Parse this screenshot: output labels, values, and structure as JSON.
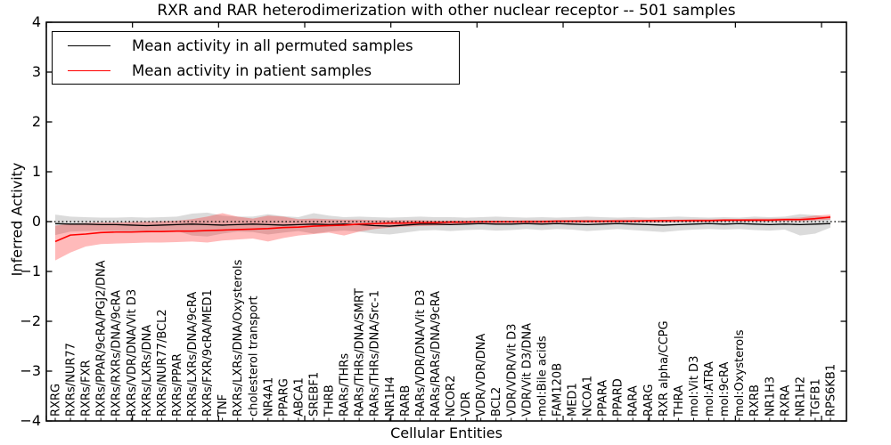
{
  "figure": {
    "title": "RXR and RAR heterodimerization with other nuclear receptor -- 501 samples",
    "xlabel": "Cellular Entities",
    "ylabel": "Inferred Activity",
    "legend": [
      {
        "label": "Mean activity in all permuted samples",
        "color": "#000000"
      },
      {
        "label": "Mean activity in patient samples",
        "color": "#ff0000"
      }
    ]
  },
  "chart_data": {
    "type": "line",
    "title": "RXR and RAR heterodimerization with other nuclear receptor -- 501 samples",
    "xlabel": "Cellular Entities",
    "ylabel": "Inferred Activity",
    "ylim": [
      -4,
      4
    ],
    "yticks": [
      -4,
      -3,
      -2,
      -1,
      0,
      1,
      2,
      3,
      4
    ],
    "ytick_labels": [
      "−4",
      "−3",
      "−2",
      "−1",
      "0",
      "1",
      "2",
      "3",
      "4"
    ],
    "grid": false,
    "legend_position": "upper left",
    "zero_line": {
      "value": 0,
      "style": "dotted",
      "color": "#000000"
    },
    "categories": [
      "RXRG",
      "RXRs/NUR77",
      "RXRs/FXR",
      "RXRs/PPAR/9cRA/PGJ2/DNA",
      "RXRs/RXRs/DNA/9cRA",
      "RXRs/VDR/DNA/Vit D3",
      "RXRs/LXRs/DNA",
      "RXRs/NUR77/BCL2",
      "RXRs/PPAR",
      "RXRs/LXRs/DNA/9cRA",
      "RXRs/FXR/9cRA/MED1",
      "TNF",
      "RXRs/LXRs/DNA/Oxysterols",
      "cholesterol transport",
      "NR4A1",
      "PPARG",
      "ABCA1",
      "SREBF1",
      "THRB",
      "RARs/THRs",
      "RARs/THRs/DNA/SMRT",
      "RARs/THRs/DNA/Src-1",
      "NR1H4",
      "RARB",
      "RARs/VDR/DNA/Vit D3",
      "RARs/RARs/DNA/9cRA",
      "NCOR2",
      "VDR",
      "VDR/VDR/DNA",
      "BCL2",
      "VDR/VDR/Vit D3",
      "VDR/Vit D3/DNA",
      "mol:Bile acids",
      "FAM120B",
      "MED1",
      "NCOA1",
      "PPARA",
      "PPARD",
      "RARA",
      "RARG",
      "RXR alpha/CCPG",
      "THRA",
      "mol:Vit D3",
      "mol:ATRA",
      "mol:9cRA",
      "mol:Oxysterols",
      "RXRB",
      "NR1H3",
      "RXRA",
      "NR1H2",
      "TGFB1",
      "RPS6KB1"
    ],
    "series": [
      {
        "name": "Mean activity in all permuted samples",
        "color": "#000000",
        "band_color": "rgba(0,0,0,0.14)",
        "values": [
          -0.04,
          -0.05,
          -0.05,
          -0.06,
          -0.06,
          -0.07,
          -0.08,
          -0.07,
          -0.06,
          -0.05,
          -0.06,
          -0.07,
          -0.06,
          -0.05,
          -0.06,
          -0.07,
          -0.06,
          -0.05,
          -0.06,
          -0.05,
          -0.06,
          -0.08,
          -0.09,
          -0.07,
          -0.05,
          -0.05,
          -0.06,
          -0.05,
          -0.04,
          -0.05,
          -0.05,
          -0.04,
          -0.05,
          -0.04,
          -0.05,
          -0.06,
          -0.05,
          -0.04,
          -0.05,
          -0.06,
          -0.07,
          -0.06,
          -0.05,
          -0.04,
          -0.05,
          -0.04,
          -0.05,
          -0.06,
          -0.05,
          -0.06,
          -0.05,
          -0.04
        ],
        "band_upper": [
          0.14,
          0.1,
          0.09,
          0.08,
          0.08,
          0.09,
          0.08,
          0.09,
          0.1,
          0.16,
          0.18,
          0.12,
          0.1,
          0.1,
          0.15,
          0.11,
          0.09,
          0.17,
          0.12,
          0.09,
          0.1,
          0.09,
          0.08,
          0.09,
          0.1,
          0.09,
          0.09,
          0.08,
          0.09,
          0.1,
          0.09,
          0.08,
          0.09,
          0.08,
          0.09,
          0.1,
          0.09,
          0.08,
          0.09,
          0.08,
          0.09,
          0.1,
          0.09,
          0.08,
          0.09,
          0.08,
          0.1,
          0.09,
          0.1,
          0.15,
          0.13,
          0.08
        ],
        "band_lower": [
          -0.27,
          -0.2,
          -0.19,
          -0.18,
          -0.19,
          -0.2,
          -0.22,
          -0.2,
          -0.19,
          -0.28,
          -0.3,
          -0.24,
          -0.2,
          -0.21,
          -0.26,
          -0.22,
          -0.19,
          -0.24,
          -0.2,
          -0.18,
          -0.2,
          -0.24,
          -0.26,
          -0.22,
          -0.18,
          -0.17,
          -0.19,
          -0.17,
          -0.16,
          -0.18,
          -0.17,
          -0.15,
          -0.17,
          -0.15,
          -0.16,
          -0.19,
          -0.17,
          -0.15,
          -0.17,
          -0.19,
          -0.21,
          -0.18,
          -0.16,
          -0.15,
          -0.16,
          -0.15,
          -0.17,
          -0.18,
          -0.16,
          -0.28,
          -0.24,
          -0.12
        ]
      },
      {
        "name": "Mean activity in patient samples",
        "color": "#ff0000",
        "band_color": "rgba(255,0,0,0.27)",
        "values": [
          -0.4,
          -0.27,
          -0.25,
          -0.22,
          -0.21,
          -0.21,
          -0.2,
          -0.2,
          -0.19,
          -0.19,
          -0.18,
          -0.17,
          -0.16,
          -0.15,
          -0.14,
          -0.12,
          -0.11,
          -0.09,
          -0.08,
          -0.07,
          -0.05,
          -0.04,
          -0.03,
          -0.03,
          -0.02,
          -0.02,
          -0.01,
          -0.01,
          0.0,
          0.0,
          0.0,
          0.0,
          0.0,
          0.01,
          0.01,
          0.01,
          0.01,
          0.01,
          0.01,
          0.02,
          0.02,
          0.02,
          0.02,
          0.02,
          0.03,
          0.03,
          0.03,
          0.03,
          0.04,
          0.04,
          0.06,
          0.09
        ],
        "band_upper": [
          -0.08,
          -0.04,
          -0.03,
          -0.02,
          -0.02,
          -0.01,
          0.0,
          0.01,
          0.02,
          0.05,
          0.1,
          0.17,
          0.1,
          0.06,
          0.12,
          0.1,
          0.05,
          0.06,
          0.05,
          0.04,
          0.04,
          0.03,
          0.03,
          0.03,
          0.03,
          0.02,
          0.02,
          0.02,
          0.02,
          0.02,
          0.02,
          0.03,
          0.03,
          0.03,
          0.03,
          0.03,
          0.03,
          0.04,
          0.04,
          0.04,
          0.04,
          0.04,
          0.05,
          0.05,
          0.05,
          0.05,
          0.06,
          0.06,
          0.07,
          0.08,
          0.12,
          0.14
        ],
        "band_lower": [
          -0.78,
          -0.62,
          -0.5,
          -0.45,
          -0.44,
          -0.43,
          -0.42,
          -0.42,
          -0.41,
          -0.4,
          -0.42,
          -0.38,
          -0.36,
          -0.34,
          -0.4,
          -0.33,
          -0.28,
          -0.25,
          -0.22,
          -0.28,
          -0.2,
          -0.15,
          -0.12,
          -0.1,
          -0.09,
          -0.08,
          -0.07,
          -0.06,
          -0.05,
          -0.04,
          -0.04,
          -0.04,
          -0.04,
          -0.03,
          -0.03,
          -0.03,
          -0.03,
          -0.02,
          -0.02,
          -0.02,
          -0.02,
          -0.01,
          -0.01,
          -0.01,
          0.0,
          0.0,
          0.0,
          0.0,
          0.01,
          0.01,
          0.02,
          0.04
        ]
      }
    ]
  }
}
